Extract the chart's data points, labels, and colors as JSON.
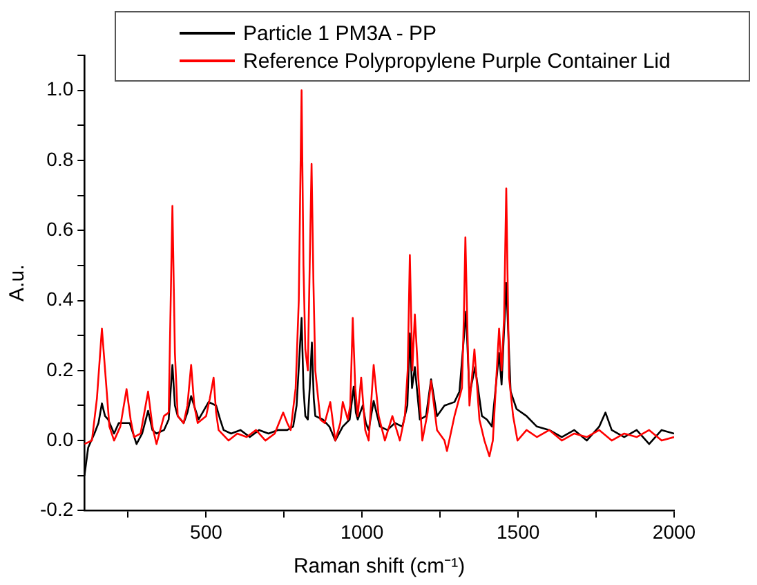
{
  "chart_data": {
    "type": "line",
    "xlabel": "Raman shift (cm⁻¹)",
    "ylabel": "A.u.",
    "xlim": [
      110,
      2000
    ],
    "xticks": [
      {
        "value": 250,
        "label": null
      },
      500,
      {
        "value": 750,
        "label": null
      },
      1000,
      {
        "value": 1250,
        "label": null
      },
      1500,
      {
        "value": 1750,
        "label": null
      },
      2000
    ],
    "ylim": [
      -0.2,
      1.1
    ],
    "yticks": [
      {
        "value": -0.2,
        "label": "-0.2"
      },
      {
        "value": -0.1,
        "label": null
      },
      {
        "value": 0,
        "label": "0.0"
      },
      {
        "value": 0.1,
        "label": null
      },
      0.2,
      {
        "value": 0.3,
        "label": null
      },
      0.4,
      {
        "value": 0.5,
        "label": null
      },
      0.6,
      {
        "value": 0.7,
        "label": null
      },
      0.8,
      {
        "value": 0.9,
        "label": null
      },
      {
        "value": 1,
        "label": "1.0"
      },
      {
        "value": 1.1,
        "label": null
      }
    ],
    "grid": false,
    "legend": "top",
    "marker": "none",
    "line_style": "solid",
    "series": [
      {
        "name": "Reference Polypropylene Purple Container Lid",
        "color": "#ff0000",
        "x": [
          110,
          134,
          150,
          166,
          178,
          190,
          205,
          225,
          245,
          258,
          269,
          290,
          314,
          328,
          341,
          365,
          380,
          392,
          400,
          409,
          428,
          440,
          452,
          462,
          473,
          500,
          512,
          524,
          532,
          540,
          572,
          600,
          630,
          660,
          690,
          720,
          747,
          760,
          771,
          787,
          797,
          806,
          812,
          818,
          826,
          832,
          838,
          844,
          850,
          866,
          880,
          898,
          914,
          930,
          938,
          954,
          962,
          970,
          978,
          986,
          997,
          1010,
          1021,
          1037,
          1053,
          1073,
          1097,
          1121,
          1137,
          1146,
          1153,
          1161,
          1169,
          1180,
          1193,
          1210,
          1221,
          1240,
          1264,
          1272,
          1296,
          1320,
          1326,
          1331,
          1338,
          1344,
          1360,
          1376,
          1392,
          1408,
          1419,
          1439,
          1447,
          1455,
          1462,
          1471,
          1484,
          1498,
          1527,
          1560,
          1600,
          1640,
          1680,
          1720,
          1760,
          1800,
          1840,
          1880,
          1920,
          1960,
          2000
        ],
        "values": [
          -0.01,
          0.0,
          0.12,
          0.32,
          0.18,
          0.04,
          0.0,
          0.04,
          0.147,
          0.06,
          0.01,
          0.02,
          0.14,
          0.04,
          -0.01,
          0.07,
          0.08,
          0.67,
          0.25,
          0.07,
          0.05,
          0.1,
          0.216,
          0.1,
          0.05,
          0.07,
          0.12,
          0.18,
          0.08,
          0.03,
          0.0,
          0.02,
          0.01,
          0.03,
          0.0,
          0.02,
          0.08,
          0.05,
          0.03,
          0.15,
          0.4,
          1.0,
          0.5,
          0.26,
          0.2,
          0.5,
          0.79,
          0.45,
          0.2,
          0.06,
          0.05,
          0.11,
          0.0,
          0.05,
          0.11,
          0.06,
          0.1,
          0.35,
          0.15,
          0.07,
          0.18,
          0.03,
          0.0,
          0.216,
          0.07,
          0.0,
          0.07,
          0.0,
          0.07,
          0.2,
          0.53,
          0.2,
          0.36,
          0.18,
          0.0,
          0.08,
          0.17,
          0.03,
          0.0,
          -0.03,
          0.07,
          0.15,
          0.35,
          0.58,
          0.3,
          0.1,
          0.26,
          0.06,
          0.0,
          -0.045,
          0.0,
          0.32,
          0.2,
          0.35,
          0.72,
          0.18,
          0.07,
          0.0,
          0.03,
          0.01,
          0.03,
          0.0,
          0.02,
          0.01,
          0.03,
          0.0,
          0.02,
          0.01,
          0.03,
          0.0,
          0.01
        ]
      },
      {
        "name": "Particle 1 PM3A - PP",
        "color": "#000000",
        "x": [
          110,
          122,
          142,
          155,
          166,
          176,
          186,
          205,
          220,
          237,
          255,
          277,
          295,
          314,
          328,
          341,
          365,
          380,
          392,
          400,
          409,
          428,
          440,
          452,
          465,
          476,
          508,
          532,
          545,
          556,
          580,
          610,
          640,
          670,
          700,
          730,
          760,
          779,
          790,
          806,
          812,
          818,
          826,
          832,
          839,
          845,
          850,
          874,
          895,
          914,
          938,
          960,
          973,
          980,
          986,
          1002,
          1012,
          1021,
          1037,
          1057,
          1081,
          1105,
          1129,
          1145,
          1153,
          1160,
          1169,
          1185,
          1205,
          1221,
          1240,
          1264,
          1296,
          1312,
          1333,
          1344,
          1362,
          1384,
          1400,
          1416,
          1439,
          1447,
          1462,
          1476,
          1495,
          1527,
          1560,
          1600,
          1640,
          1680,
          1720,
          1760,
          1780,
          1800,
          1840,
          1880,
          1920,
          1960,
          2000
        ],
        "values": [
          -0.1,
          -0.02,
          0.02,
          0.05,
          0.106,
          0.07,
          0.06,
          0.02,
          0.05,
          0.05,
          0.05,
          -0.01,
          0.02,
          0.085,
          0.03,
          0.02,
          0.03,
          0.06,
          0.216,
          0.1,
          0.07,
          0.05,
          0.08,
          0.127,
          0.09,
          0.06,
          0.11,
          0.1,
          0.06,
          0.03,
          0.02,
          0.03,
          0.01,
          0.03,
          0.02,
          0.03,
          0.03,
          0.04,
          0.1,
          0.35,
          0.15,
          0.07,
          0.06,
          0.15,
          0.28,
          0.12,
          0.07,
          0.06,
          0.04,
          0.0,
          0.04,
          0.06,
          0.154,
          0.08,
          0.06,
          0.1,
          0.05,
          0.03,
          0.113,
          0.04,
          0.03,
          0.05,
          0.04,
          0.1,
          0.306,
          0.15,
          0.21,
          0.06,
          0.07,
          0.175,
          0.07,
          0.1,
          0.11,
          0.14,
          0.368,
          0.13,
          0.21,
          0.07,
          0.06,
          0.04,
          0.25,
          0.16,
          0.45,
          0.14,
          0.09,
          0.07,
          0.04,
          0.03,
          0.01,
          0.03,
          0.0,
          0.04,
          0.08,
          0.03,
          0.01,
          0.03,
          -0.01,
          0.03,
          0.02
        ]
      }
    ]
  }
}
